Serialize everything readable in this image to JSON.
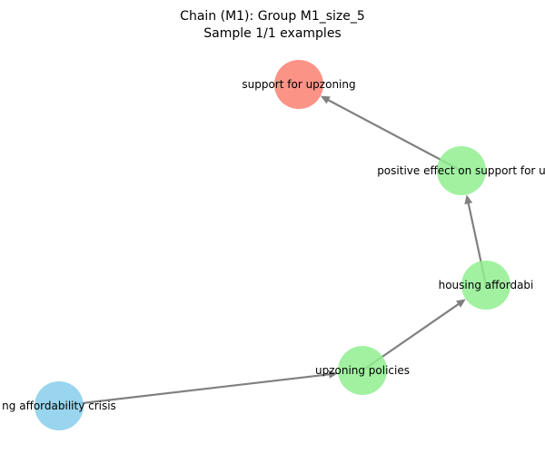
{
  "title": {
    "line1": "Chain (M1): Group M1_size_5",
    "line2": "Sample 1/1 examples"
  },
  "colors": {
    "edge": "#808080",
    "source_node": "#87CEEB",
    "mediator_node": "#90EE90",
    "outcome_node": "#FA8072"
  },
  "nodes": [
    {
      "id": "crisis",
      "label": "ng affordability crisis",
      "role": "source_node"
    },
    {
      "id": "upzoning",
      "label": "upzoning policies",
      "role": "mediator_node"
    },
    {
      "id": "afford",
      "label": "housing affordabi",
      "role": "mediator_node"
    },
    {
      "id": "effect",
      "label": "positive effect on support for u",
      "role": "mediator_node"
    },
    {
      "id": "support",
      "label": "support for upzoning",
      "role": "outcome_node"
    }
  ],
  "edges": [
    {
      "from": "crisis",
      "to": "upzoning"
    },
    {
      "from": "upzoning",
      "to": "afford"
    },
    {
      "from": "afford",
      "to": "effect"
    },
    {
      "from": "effect",
      "to": "support"
    }
  ]
}
